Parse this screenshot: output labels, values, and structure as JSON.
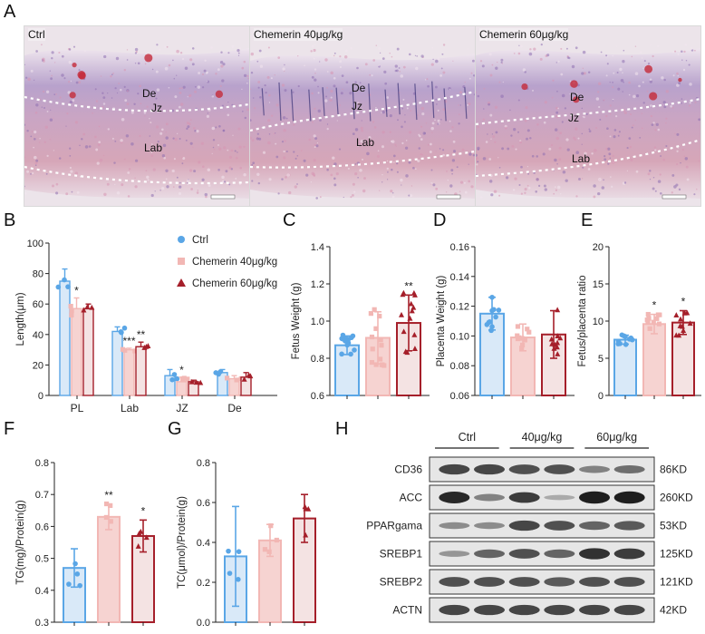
{
  "figure_labels": {
    "A": "A",
    "B": "B",
    "C": "C",
    "D": "D",
    "E": "E",
    "F": "F",
    "G": "G",
    "H": "H"
  },
  "colors": {
    "ctrl": "#5aa6e6",
    "c40": "#f2b7b4",
    "c60": "#a51f2a",
    "ctrl_fill": "#d9e9f8",
    "c40_fill": "#f6d3d1",
    "c60_fill": "#f4e3e3"
  },
  "panel_a": {
    "images": [
      {
        "title": "Ctrl",
        "labels": [
          "De",
          "Jz",
          "Lab"
        ]
      },
      {
        "title": "Chemerin 40μg/kg",
        "labels": [
          "De",
          "Jz",
          "Lab"
        ]
      },
      {
        "title": "Chemerin 60μg/kg",
        "labels": [
          "De",
          "Jz",
          "Lab"
        ]
      }
    ]
  },
  "chart_data": [
    {
      "panel": "B",
      "type": "bar",
      "categories": [
        "PL",
        "Lab",
        "JZ",
        "De"
      ],
      "ylabel": "Length(μm)",
      "ylim": [
        0,
        100
      ],
      "yticks": [
        0,
        20,
        40,
        60,
        80,
        100
      ],
      "legend": [
        "Ctrl",
        "Chemerin 40μg/kg",
        "Chemerin 60μg/kg"
      ],
      "series": [
        {
          "name": "Ctrl",
          "values": [
            75,
            42,
            13,
            15
          ],
          "errors": [
            8,
            3,
            4,
            2
          ]
        },
        {
          "name": "Chemerin 40μg/kg",
          "values": [
            57,
            30,
            9,
            11
          ],
          "errors": [
            7,
            1,
            3,
            2
          ]
        },
        {
          "name": "Chemerin 60μg/kg",
          "values": [
            57,
            32,
            9,
            12
          ],
          "errors": [
            3,
            3,
            1,
            3
          ]
        }
      ],
      "significance": [
        {
          "category": 1,
          "series": 1,
          "text": "*"
        },
        {
          "category": 1,
          "series": 2,
          "text": "***"
        },
        {
          "category": 2,
          "series": 2,
          "text": "**"
        },
        {
          "category": 1,
          "series": 3,
          "text": "*"
        }
      ]
    },
    {
      "panel": "C",
      "type": "bar",
      "ylabel": "Fetus Weight (g)",
      "ylim": [
        0.6,
        1.4
      ],
      "yticks": [
        "0.6",
        "0.8",
        "1.0",
        "1.2",
        "1.4"
      ],
      "series": [
        {
          "name": "Ctrl",
          "value": 0.87,
          "error": 0.05
        },
        {
          "name": "Chemerin 40μg/kg",
          "value": 0.91,
          "error": 0.14
        },
        {
          "name": "Chemerin 60μg/kg",
          "value": 0.99,
          "error": 0.15
        }
      ],
      "significance": [
        {
          "series": 2,
          "text": "**"
        }
      ]
    },
    {
      "panel": "D",
      "type": "bar",
      "ylabel": "Placenta Weight (g)",
      "ylim": [
        0.06,
        0.16
      ],
      "yticks": [
        "0.06",
        "0.08",
        "0.10",
        "0.12",
        "0.14",
        "0.16"
      ],
      "series": [
        {
          "name": "Ctrl",
          "value": 0.115,
          "error": 0.011
        },
        {
          "name": "Chemerin 40μg/kg",
          "value": 0.099,
          "error": 0.009
        },
        {
          "name": "Chemerin 60μg/kg",
          "value": 0.101,
          "error": 0.016
        }
      ],
      "significance": []
    },
    {
      "panel": "E",
      "type": "bar",
      "ylabel": "Fetus/placenta ratio",
      "ylim": [
        0,
        20
      ],
      "yticks": [
        "0",
        "5",
        "10",
        "15",
        "20"
      ],
      "series": [
        {
          "name": "Ctrl",
          "value": 7.5,
          "error": 0.6
        },
        {
          "name": "Chemerin 40μg/kg",
          "value": 9.6,
          "error": 1.3
        },
        {
          "name": "Chemerin 60μg/kg",
          "value": 9.8,
          "error": 1.6
        }
      ],
      "significance": [
        {
          "series": 1,
          "text": "*"
        },
        {
          "series": 2,
          "text": "*"
        }
      ]
    },
    {
      "panel": "F",
      "type": "bar",
      "ylabel": "TG(mg)/Protein(g)",
      "ylim": [
        0.3,
        0.8
      ],
      "yticks": [
        "0.3",
        "0.4",
        "0.5",
        "0.6",
        "0.7",
        "0.8"
      ],
      "series": [
        {
          "name": "Ctrl",
          "value": 0.47,
          "error": 0.06
        },
        {
          "name": "Chemerin 40μg/kg",
          "value": 0.63,
          "error": 0.04
        },
        {
          "name": "Chemerin 60μg/kg",
          "value": 0.57,
          "error": 0.05
        }
      ],
      "significance": [
        {
          "series": 1,
          "text": "**"
        },
        {
          "series": 2,
          "text": "*"
        }
      ]
    },
    {
      "panel": "G",
      "type": "bar",
      "ylabel": "TC(μmol)/Protein(g)",
      "ylim": [
        0,
        0.8
      ],
      "yticks": [
        "0.0",
        "0.2",
        "0.4",
        "0.6",
        "0.8"
      ],
      "series": [
        {
          "name": "Ctrl",
          "value": 0.33,
          "error": 0.25
        },
        {
          "name": "Chemerin 40μg/kg",
          "value": 0.41,
          "error": 0.08
        },
        {
          "name": "Chemerin 60μg/kg",
          "value": 0.52,
          "error": 0.12
        }
      ],
      "significance": []
    }
  ],
  "western_blot": {
    "groups": [
      "Ctrl",
      "40μg/kg",
      "60μg/kg"
    ],
    "rows": [
      {
        "protein": "CD36",
        "size": "86KD",
        "intensity": [
          0.75,
          0.75,
          0.7,
          0.7,
          0.45,
          0.55
        ]
      },
      {
        "protein": "ACC",
        "size": "260KD",
        "intensity": [
          0.9,
          0.45,
          0.8,
          0.25,
          0.95,
          0.95
        ]
      },
      {
        "protein": "PPARgama",
        "size": "53KD",
        "intensity": [
          0.4,
          0.4,
          0.75,
          0.7,
          0.6,
          0.65
        ]
      },
      {
        "protein": "SREBP1",
        "size": "125KD",
        "intensity": [
          0.35,
          0.6,
          0.7,
          0.6,
          0.85,
          0.8
        ]
      },
      {
        "protein": "SREBP2",
        "size": "121KD",
        "intensity": [
          0.7,
          0.7,
          0.7,
          0.65,
          0.7,
          0.7
        ]
      },
      {
        "protein": "ACTN",
        "size": "42KD",
        "intensity": [
          0.75,
          0.75,
          0.75,
          0.75,
          0.75,
          0.75
        ]
      }
    ]
  }
}
